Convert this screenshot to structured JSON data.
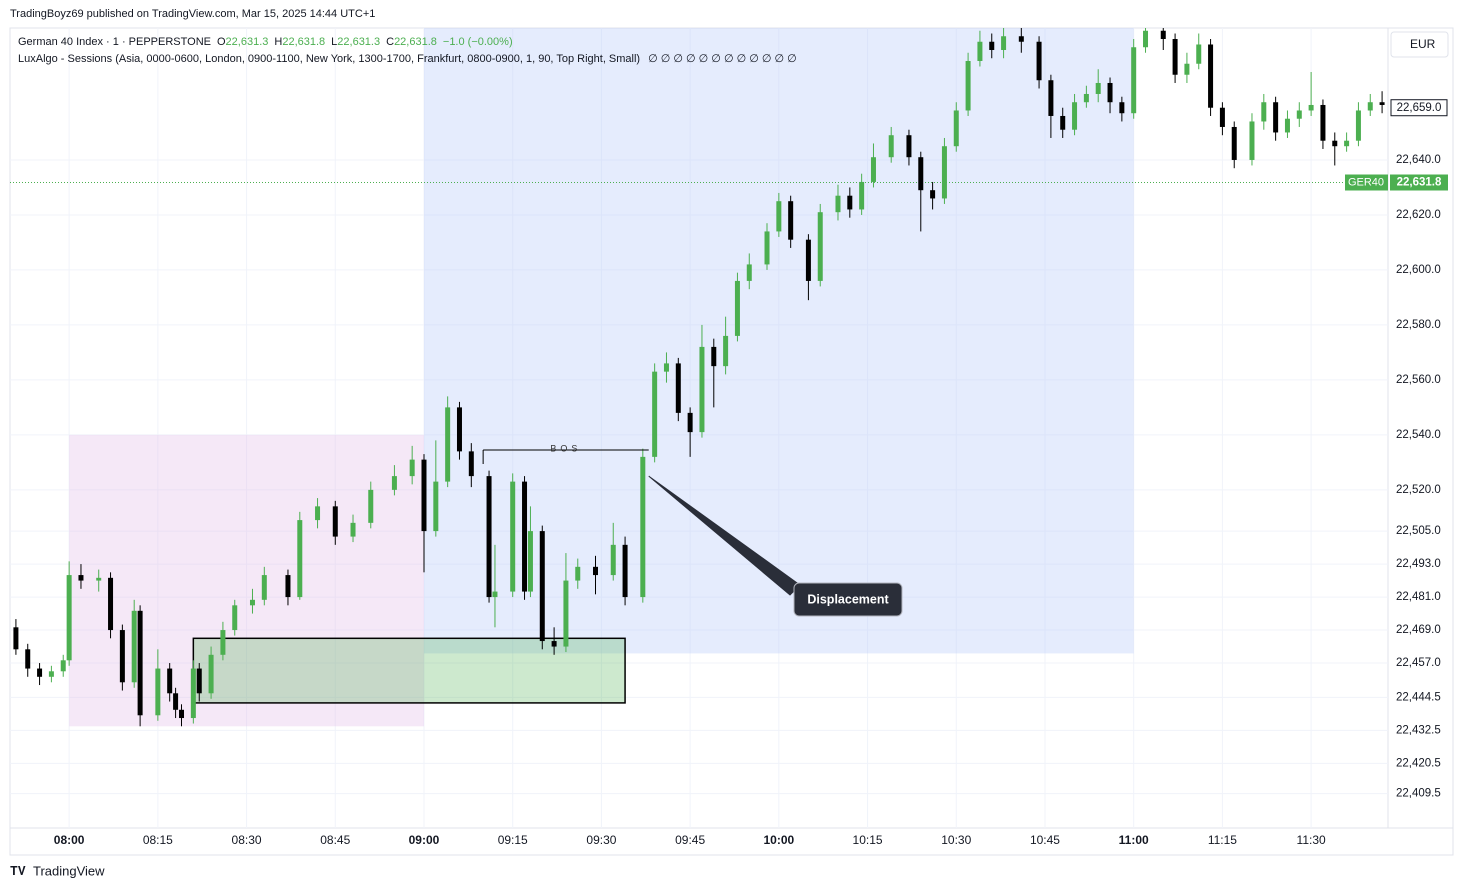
{
  "header": {
    "published": "TradingBoyz69 published on TradingView.com, Mar 15, 2025 14:44 UTC+1",
    "currency": "EUR",
    "brand": "TradingView"
  },
  "chart_data": {
    "type": "candlestick",
    "symbol": "German 40 Index · 1 · PEPPERSTONE",
    "ohlc_legend": [
      {
        "key": "O",
        "value": "22,631.3"
      },
      {
        "key": "H",
        "value": "22,631.8"
      },
      {
        "key": "L",
        "value": "22,631.3"
      },
      {
        "key": "C",
        "value": "22,631.8"
      }
    ],
    "change": "−1.0 (−0.00%)",
    "indicator": "LuxAlgo - Sessions (Asia, 0000-0600, London, 0900-1100, New York, 1300-1700, Frankfurt, 0800-0900, 1, 90, Top Right, Small)",
    "indicator_values": "∅ ∅ ∅ ∅ ∅ ∅ ∅ ∅ ∅ ∅ ∅ ∅",
    "up_color": "#4caf50",
    "down_color": "#000000",
    "xlim": [
      "07:50",
      "11:43"
    ],
    "ylim": [
      22397,
      22688
    ],
    "yticks": [
      {
        "value": 22409.5,
        "label": "22,409.5"
      },
      {
        "value": 22420.5,
        "label": "22,420.5"
      },
      {
        "value": 22432.5,
        "label": "22,432.5"
      },
      {
        "value": 22444.5,
        "label": "22,444.5"
      },
      {
        "value": 22457,
        "label": "22,457.0"
      },
      {
        "value": 22469,
        "label": "22,469.0"
      },
      {
        "value": 22481,
        "label": "22,481.0"
      },
      {
        "value": 22493,
        "label": "22,493.0"
      },
      {
        "value": 22505,
        "label": "22,505.0"
      },
      {
        "value": 22520,
        "label": "22,520.0"
      },
      {
        "value": 22540,
        "label": "22,540.0"
      },
      {
        "value": 22560,
        "label": "22,560.0"
      },
      {
        "value": 22580,
        "label": "22,580.0"
      },
      {
        "value": 22600,
        "label": "22,600.0"
      },
      {
        "value": 22620,
        "label": "22,620.0"
      },
      {
        "value": 22640,
        "label": "22,640.0"
      }
    ],
    "xticks": [
      "08:00",
      "08:15",
      "08:30",
      "08:45",
      "09:00",
      "09:15",
      "09:30",
      "09:45",
      "10:00",
      "10:15",
      "10:30",
      "10:45",
      "11:00",
      "11:15",
      "11:30"
    ],
    "grid": true,
    "x": [
      "07:51",
      "07:53",
      "07:55",
      "07:57",
      "07:59",
      "08:00",
      "08:02",
      "08:05",
      "08:07",
      "08:09",
      "08:11",
      "08:12",
      "08:15",
      "08:17",
      "08:18",
      "08:19",
      "08:21",
      "08:22",
      "08:24",
      "08:26",
      "08:28",
      "08:31",
      "08:33",
      "08:37",
      "08:39",
      "08:42",
      "08:45",
      "08:48",
      "08:51",
      "08:55",
      "08:58",
      "09:00",
      "09:02",
      "09:04",
      "09:06",
      "09:08",
      "09:11",
      "09:12",
      "09:15",
      "09:17",
      "09:18",
      "09:20",
      "09:22",
      "09:24",
      "09:26",
      "09:29",
      "09:32",
      "09:34",
      "09:37",
      "09:39",
      "09:41",
      "09:43",
      "09:45",
      "09:47",
      "09:49",
      "09:51",
      "09:53",
      "09:55",
      "09:58",
      "10:00",
      "10:02",
      "10:05",
      "10:07",
      "10:10",
      "10:12",
      "10:14",
      "10:16",
      "10:19",
      "10:22",
      "10:24",
      "10:26",
      "10:28",
      "10:30",
      "10:32",
      "10:34",
      "10:36",
      "10:38",
      "10:41",
      "10:44",
      "10:46",
      "10:48",
      "10:50",
      "10:52",
      "10:54",
      "10:56",
      "10:58",
      "11:00",
      "11:02",
      "11:05",
      "11:07",
      "11:09",
      "11:11",
      "11:13",
      "11:15",
      "11:17",
      "11:20",
      "11:22",
      "11:24",
      "11:26",
      "11:28",
      "11:30",
      "11:32",
      "11:34",
      "11:36",
      "11:38",
      "11:40",
      "11:42"
    ],
    "ohlc": [
      [
        22470,
        22473,
        22460,
        22462
      ],
      [
        22462,
        22464,
        22452,
        22455
      ],
      [
        22455,
        22457,
        22449,
        22452
      ],
      [
        22452,
        22456,
        22450,
        22454
      ],
      [
        22454,
        22460,
        22452,
        22458
      ],
      [
        22458,
        22494,
        22456,
        22489
      ],
      [
        22489,
        22493,
        22484,
        22487
      ],
      [
        22487,
        22491,
        22483,
        22488
      ],
      [
        22488,
        22490,
        22466,
        22469
      ],
      [
        22469,
        22471,
        22447,
        22450
      ],
      [
        22450,
        22480,
        22448,
        22476
      ],
      [
        22476,
        22478,
        22434,
        22438
      ],
      [
        22438,
        22462,
        22436,
        22455
      ],
      [
        22455,
        22457,
        22443,
        22446
      ],
      [
        22446,
        22448,
        22437,
        22440
      ],
      [
        22440,
        22442,
        22434,
        22437
      ],
      [
        22437,
        22458,
        22435,
        22455
      ],
      [
        22455,
        22457,
        22443,
        22446
      ],
      [
        22446,
        22463,
        22444,
        22460
      ],
      [
        22460,
        22472,
        22458,
        22469
      ],
      [
        22469,
        22480,
        22467,
        22478
      ],
      [
        22478,
        22484,
        22475,
        22480
      ],
      [
        22480,
        22492,
        22478,
        22489
      ],
      [
        22489,
        22491,
        22478,
        22481
      ],
      [
        22481,
        22512,
        22480,
        22509
      ],
      [
        22509,
        22517,
        22506,
        22514
      ],
      [
        22514,
        22516,
        22500,
        22503
      ],
      [
        22503,
        22511,
        22501,
        22508
      ],
      [
        22508,
        22523,
        22506,
        22520
      ],
      [
        22520,
        22529,
        22518,
        22525
      ],
      [
        22525,
        22536,
        22522,
        22531
      ],
      [
        22531,
        22533,
        22490,
        22505
      ],
      [
        22505,
        22538,
        22503,
        22523
      ],
      [
        22523,
        22554,
        22521,
        22550
      ],
      [
        22550,
        22552,
        22531,
        22534
      ],
      [
        22534,
        22537,
        22521,
        22525
      ],
      [
        22525,
        22527,
        22479,
        22481
      ],
      [
        22481,
        22500,
        22470,
        22483
      ],
      [
        22483,
        22526,
        22481,
        22523
      ],
      [
        22523,
        22525,
        22480,
        22483
      ],
      [
        22483,
        22514,
        22481,
        22505
      ],
      [
        22505,
        22507,
        22462,
        22465
      ],
      [
        22465,
        22470,
        22460,
        22463
      ],
      [
        22463,
        22497,
        22461,
        22487
      ],
      [
        22487,
        22495,
        22484,
        22492
      ],
      [
        22492,
        22496,
        22482,
        22489
      ],
      [
        22489,
        22508,
        22487,
        22500
      ],
      [
        22500,
        22503,
        22478,
        22481
      ],
      [
        22481,
        22535,
        22479,
        22532
      ],
      [
        22532,
        22566,
        22530,
        22563
      ],
      [
        22563,
        22570,
        22559,
        22566
      ],
      [
        22566,
        22568,
        22545,
        22548
      ],
      [
        22548,
        22550,
        22532,
        22541
      ],
      [
        22541,
        22580,
        22539,
        22572
      ],
      [
        22572,
        22575,
        22550,
        22565
      ],
      [
        22565,
        22583,
        22562,
        22576
      ],
      [
        22576,
        22599,
        22574,
        22596
      ],
      [
        22596,
        22606,
        22593,
        22602
      ],
      [
        22602,
        22617,
        22600,
        22614
      ],
      [
        22614,
        22628,
        22612,
        22625
      ],
      [
        22625,
        22627,
        22608,
        22611
      ],
      [
        22611,
        22613,
        22589,
        22596
      ],
      [
        22596,
        22624,
        22594,
        22621
      ],
      [
        22621,
        22631,
        22618,
        22627
      ],
      [
        22627,
        22630,
        22619,
        22622
      ],
      [
        22622,
        22635,
        22620,
        22632
      ],
      [
        22632,
        22646,
        22630,
        22641
      ],
      [
        22641,
        22652,
        22639,
        22649
      ],
      [
        22649,
        22651,
        22638,
        22641
      ],
      [
        22641,
        22643,
        22614,
        22629
      ],
      [
        22629,
        22632,
        22622,
        22626
      ],
      [
        22626,
        22648,
        22624,
        22645
      ],
      [
        22645,
        22661,
        22643,
        22658
      ],
      [
        22658,
        22679,
        22656,
        22676
      ],
      [
        22676,
        22687,
        22674,
        22683
      ],
      [
        22683,
        22686,
        22677,
        22680
      ],
      [
        22680,
        22688,
        22677,
        22685
      ],
      [
        22685,
        22688,
        22679,
        22683
      ],
      [
        22683,
        22685,
        22666,
        22669
      ],
      [
        22669,
        22671,
        22648,
        22656
      ],
      [
        22656,
        22659,
        22648,
        22651
      ],
      [
        22651,
        22664,
        22649,
        22661
      ],
      [
        22661,
        22667,
        22659,
        22664
      ],
      [
        22664,
        22673,
        22661,
        22668
      ],
      [
        22668,
        22670,
        22657,
        22661
      ],
      [
        22661,
        22663,
        22654,
        22657
      ],
      [
        22657,
        22684,
        22655,
        22681
      ],
      [
        22681,
        22688,
        22679,
        22687
      ],
      [
        22687,
        22688,
        22680,
        22684
      ],
      [
        22684,
        22686,
        22668,
        22671
      ],
      [
        22671,
        22679,
        22668,
        22675
      ],
      [
        22675,
        22686,
        22673,
        22682
      ],
      [
        22682,
        22684,
        22656,
        22659
      ],
      [
        22659,
        22661,
        22649,
        22652
      ],
      [
        22652,
        22654,
        22637,
        22640
      ],
      [
        22640,
        22657,
        22638,
        22654
      ],
      [
        22654,
        22664,
        22651,
        22661
      ],
      [
        22661,
        22663,
        22647,
        22650
      ],
      [
        22650,
        22658,
        22648,
        22655
      ],
      [
        22655,
        22661,
        22652,
        22658
      ],
      [
        22658,
        22672,
        22656,
        22660
      ],
      [
        22660,
        22662,
        22644,
        22647
      ],
      [
        22647,
        22650,
        22638,
        22645
      ],
      [
        22645,
        22650,
        22643,
        22647
      ],
      [
        22647,
        22661,
        22645,
        22658
      ],
      [
        22658,
        22664,
        22656,
        22661
      ],
      [
        22661,
        22665,
        22657,
        22660
      ]
    ],
    "sessions": [
      {
        "start": "08:00",
        "end": "09:00",
        "top": 22540,
        "bottom": 22434,
        "color": "rgba(225,190,231,0.35)"
      },
      {
        "start": "09:00",
        "end": "11:00",
        "top": 22688,
        "bottom": 22460.5,
        "color": "rgba(187,206,251,0.38)"
      }
    ],
    "zone": {
      "start": "08:21",
      "end": "09:34",
      "top": 22466,
      "bottom": 22442.5,
      "color": "rgba(76,175,80,0.28)"
    },
    "bos": {
      "text": "BOS",
      "start": "09:10",
      "end": "09:38",
      "level": 22534.5
    },
    "callout": {
      "text": "Displacement",
      "time": "09:38",
      "price": 22525
    },
    "last_price": {
      "symbol": "GER40",
      "value": 22631.8,
      "label": "22,631.8",
      "color": "#4caf50"
    },
    "marker": {
      "value": 22659,
      "label": "22,659.0"
    }
  }
}
